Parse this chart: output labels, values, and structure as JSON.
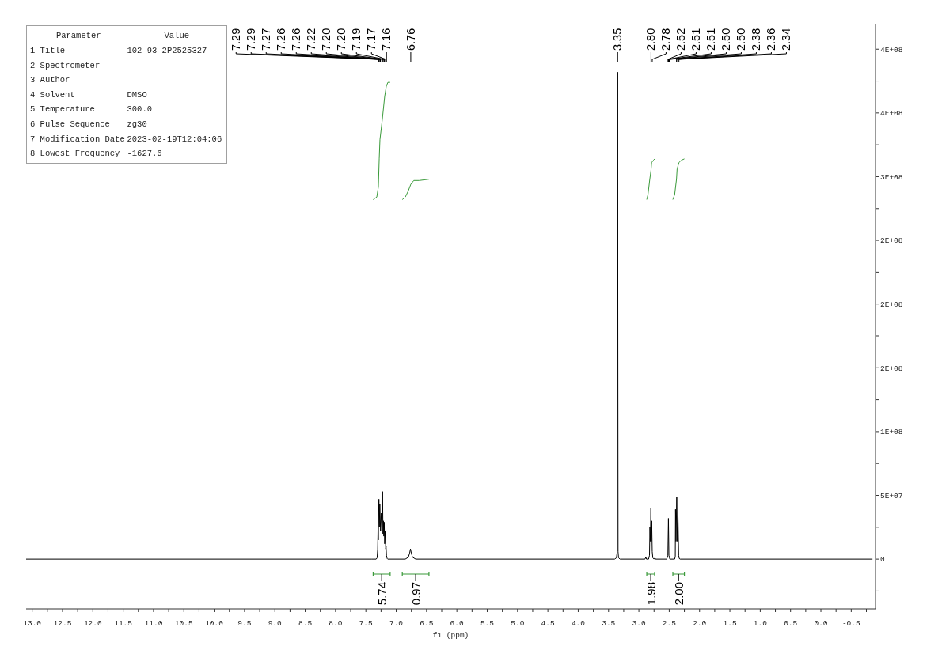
{
  "chart_data": {
    "type": "line",
    "xlabel": "f1 (ppm)",
    "xlim": [
      13.1,
      -0.9
    ],
    "xticks": [
      {
        "value": 13,
        "label": "13.0"
      },
      {
        "value": 12.75,
        "label": null
      },
      12.5,
      {
        "value": 12.25,
        "label": null
      },
      {
        "value": 12,
        "label": "12.0"
      },
      {
        "value": 11.75,
        "label": null
      },
      11.5,
      {
        "value": 11.25,
        "label": null
      },
      {
        "value": 11,
        "label": "11.0"
      },
      {
        "value": 10.75,
        "label": null
      },
      10.5,
      {
        "value": 10.25,
        "label": null
      },
      {
        "value": 10,
        "label": "10.0"
      },
      {
        "value": 9.75,
        "label": null
      },
      9.5,
      {
        "value": 9.25,
        "label": null
      },
      {
        "value": 9,
        "label": "9.0"
      },
      {
        "value": 8.75,
        "label": null
      },
      8.5,
      {
        "value": 8.25,
        "label": null
      },
      {
        "value": 8,
        "label": "8.0"
      },
      {
        "value": 7.75,
        "label": null
      },
      7.5,
      {
        "value": 7.25,
        "label": null
      },
      {
        "value": 7,
        "label": "7.0"
      },
      {
        "value": 6.75,
        "label": null
      },
      6.5,
      {
        "value": 6.25,
        "label": null
      },
      {
        "value": 6,
        "label": "6.0"
      },
      {
        "value": 5.75,
        "label": null
      },
      5.5,
      {
        "value": 5.25,
        "label": null
      },
      {
        "value": 5,
        "label": "5.0"
      },
      {
        "value": 4.75,
        "label": null
      },
      4.5,
      {
        "value": 4.25,
        "label": null
      },
      {
        "value": 4,
        "label": "4.0"
      },
      {
        "value": 3.75,
        "label": null
      },
      3.5,
      {
        "value": 3.25,
        "label": null
      },
      {
        "value": 3,
        "label": "3.0"
      },
      {
        "value": 2.75,
        "label": null
      },
      2.5,
      {
        "value": 2.25,
        "label": null
      },
      {
        "value": 2,
        "label": "2.0"
      },
      {
        "value": 1.75,
        "label": null
      },
      1.5,
      {
        "value": 1.25,
        "label": null
      },
      {
        "value": 1,
        "label": "1.0"
      },
      {
        "value": 0.75,
        "label": null
      },
      0.5,
      {
        "value": 0.25,
        "label": null
      },
      {
        "value": 0,
        "label": "0.0"
      },
      {
        "value": -0.25,
        "label": null
      },
      -0.5,
      {
        "value": -0.75,
        "label": null
      }
    ],
    "ylim": [
      -39000000,
      420000000
    ],
    "yticks": [
      {
        "value": -25000000,
        "label": null
      },
      0,
      {
        "value": 25000000,
        "label": null
      },
      {
        "value": 50000000,
        "label": "5E+07"
      },
      {
        "value": 75000000,
        "label": null
      },
      {
        "value": 100000000,
        "label": "1E+08"
      },
      {
        "value": 125000000,
        "label": null
      },
      {
        "value": 150000000,
        "label": "2E+08"
      },
      {
        "value": 175000000,
        "label": null
      },
      {
        "value": 200000000,
        "label": "2E+08"
      },
      {
        "value": 225000000,
        "label": null
      },
      {
        "value": 250000000,
        "label": "2E+08"
      },
      {
        "value": 275000000,
        "label": null
      },
      {
        "value": 300000000,
        "label": "3E+08"
      },
      {
        "value": 325000000,
        "label": null
      },
      {
        "value": 350000000,
        "label": "4E+08"
      },
      {
        "value": 375000000,
        "label": null
      },
      {
        "value": 400000000,
        "label": "4E+08"
      }
    ],
    "series": [
      {
        "color": "#000000",
        "x": [
          13.1,
          7.4,
          7.33,
          7.315,
          7.305,
          7.3,
          7.295,
          7.285,
          7.278,
          7.27,
          7.258,
          7.245,
          7.235,
          7.225,
          7.218,
          7.211,
          7.204,
          7.198,
          7.19,
          7.18,
          7.173,
          7.167,
          7.16,
          7.15,
          7.14,
          6.85,
          6.8,
          6.78,
          6.765,
          6.75,
          6.73,
          6.68,
          3.4,
          3.37,
          3.357,
          3.35,
          3.343,
          3.335,
          3.31,
          2.9,
          2.885,
          2.875,
          2.84,
          2.825,
          2.818,
          2.81,
          2.802,
          2.795,
          2.788,
          2.78,
          2.77,
          2.75,
          2.735,
          2.725,
          2.54,
          2.522,
          2.513,
          2.505,
          2.49,
          2.41,
          2.4,
          2.396,
          2.388,
          2.376,
          2.366,
          2.355,
          2.344,
          2.335,
          2.32,
          -0.85
        ],
        "values": [
          0,
          0,
          0,
          1000000,
          8000000,
          23000000,
          15000000,
          47000000,
          25000000,
          43000000,
          22000000,
          36000000,
          24000000,
          53000000,
          20000000,
          30000000,
          18000000,
          29000000,
          12000000,
          22000000,
          8000000,
          10000000,
          3000000,
          500000,
          0,
          0,
          1500000,
          4500000,
          8000000,
          4500000,
          1500000,
          0,
          0,
          1000000,
          6000000,
          382000000,
          6000000,
          1000000,
          0,
          0,
          1500000,
          0,
          0,
          3000000,
          25000000,
          14000000,
          40000000,
          14000000,
          30000000,
          6000000,
          1000000,
          0,
          1000000,
          0,
          0,
          3000000,
          32000000,
          3000000,
          0,
          0,
          2000000,
          39000000,
          14000000,
          49000000,
          14000000,
          33000000,
          3000000,
          500000,
          0,
          0
        ]
      },
      {
        "color": "#3a9a3a",
        "x": [
          7.38,
          7.32,
          7.294,
          7.28,
          7.268,
          7.229,
          7.19,
          7.163,
          7.137,
          7.1
        ],
        "values": [
          282000000,
          284000000,
          292000000,
          314000000,
          329000000,
          345000000,
          363000000,
          371000000,
          374000000,
          374000000
        ]
      },
      {
        "color": "#3a9a3a",
        "x": [
          6.9,
          6.85,
          6.8,
          6.76,
          6.71,
          6.62,
          6.46
        ],
        "values": [
          282000000,
          284000000,
          289000000,
          294000000,
          297000000,
          297000000,
          298000000
        ]
      },
      {
        "color": "#3a9a3a",
        "x": [
          2.87,
          2.85,
          2.82,
          2.8,
          2.79,
          2.76,
          2.74
        ],
        "values": [
          282000000,
          286000000,
          298000000,
          305000000,
          311000000,
          313000000,
          314000000
        ]
      },
      {
        "color": "#3a9a3a",
        "x": [
          2.44,
          2.41,
          2.38,
          2.37,
          2.34,
          2.3,
          2.25
        ],
        "values": [
          282000000,
          286000000,
          298000000,
          306000000,
          311000000,
          313000000,
          314000000
        ]
      }
    ],
    "annotations": [
      "5.74",
      "0.97",
      "1.98",
      "2.00",
      "Parameter",
      "Value",
      "1 Title",
      "102-93-2P2525327",
      "2 Spectrometer",
      null,
      "3 Author",
      null,
      "4 Solvent",
      "DMSO",
      "5 Temperature",
      "300.0",
      "6 Pulse Sequence",
      "zg30",
      "7 Modification Date",
      "2023-02-19T12:04:06",
      "8 Lowest Frequency",
      "-1627.6",
      {
        "text": "7.29",
        "x": 7.29
      },
      {
        "text": "7.29",
        "x": 7.29
      },
      {
        "text": "7.27",
        "x": 7.27
      },
      {
        "text": "7.26",
        "x": 7.26
      },
      {
        "text": "7.26",
        "x": 7.26
      },
      {
        "text": "7.22",
        "x": 7.22
      },
      {
        "text": "7.20",
        "x": 7.2
      },
      {
        "text": "7.20",
        "x": 7.2
      },
      {
        "text": "7.19",
        "x": 7.19
      },
      {
        "text": "7.17",
        "x": 7.17
      },
      {
        "text": "7.16",
        "x": 7.16
      },
      {
        "text": "6.76",
        "x": 6.76
      },
      {
        "text": "3.35",
        "x": 3.35
      },
      {
        "text": "2.80",
        "x": 2.8
      },
      {
        "text": "2.78",
        "x": 2.78
      },
      {
        "text": "2.52",
        "x": 2.52
      },
      {
        "text": "2.51",
        "x": 2.51
      },
      {
        "text": "2.51",
        "x": 2.51
      },
      {
        "text": "2.50",
        "x": 2.5
      },
      {
        "text": "2.50",
        "x": 2.5
      },
      {
        "text": "2.38",
        "x": 2.38
      },
      {
        "text": "2.36",
        "x": 2.36
      },
      {
        "text": "2.34",
        "x": 2.34
      }
    ]
  }
}
